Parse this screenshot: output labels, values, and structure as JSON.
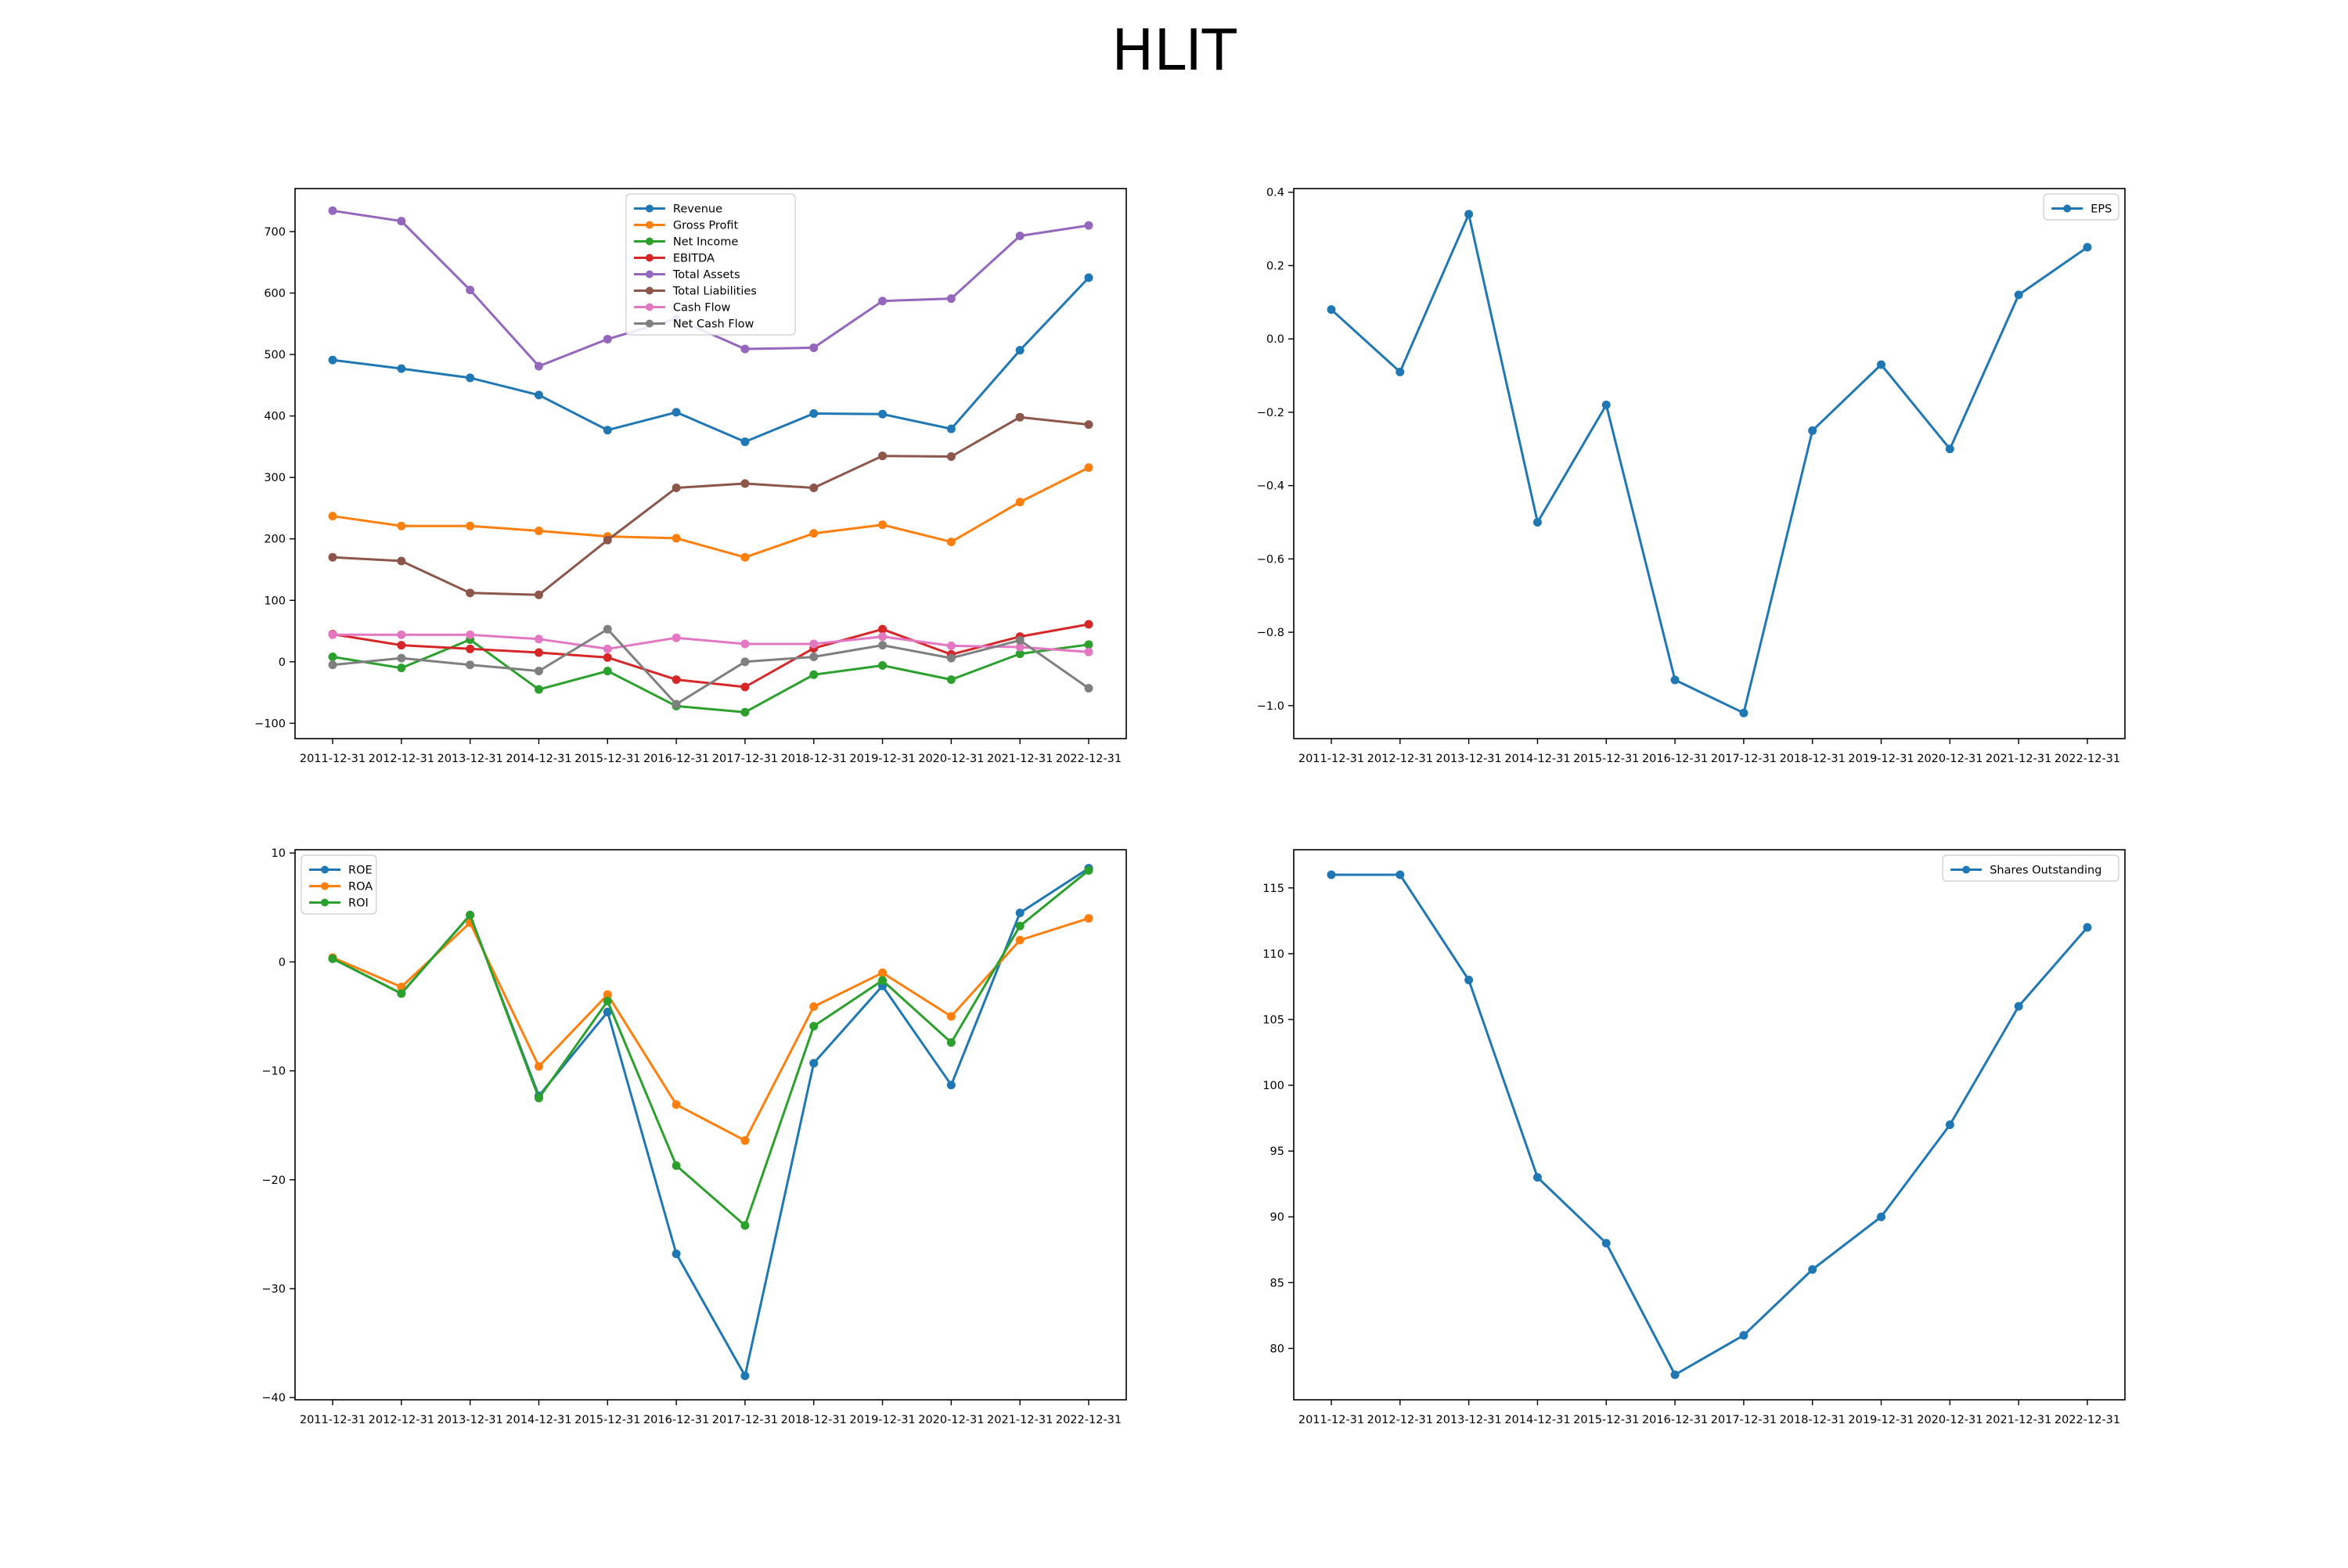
{
  "figure": {
    "title": "HLIT"
  },
  "colors": {
    "blue": "#1f77b4",
    "orange": "#ff7f0e",
    "green": "#2ca02c",
    "red": "#d62728",
    "purple": "#9467bd",
    "brown": "#8c564b",
    "pink": "#e377c2",
    "gray": "#7f7f7f"
  },
  "chart_data": [
    {
      "id": "financials",
      "type": "line",
      "title": "",
      "xlabel": "",
      "ylabel": "",
      "x": [
        "2011-12-31",
        "2012-12-31",
        "2013-12-31",
        "2014-12-31",
        "2015-12-31",
        "2016-12-31",
        "2017-12-31",
        "2018-12-31",
        "2019-12-31",
        "2020-12-31",
        "2021-12-31",
        "2022-12-31"
      ],
      "ylim": [
        -125,
        770
      ],
      "yticks": [
        -100,
        0,
        100,
        200,
        300,
        400,
        500,
        600,
        700
      ],
      "grid": false,
      "legend": "top-center",
      "series": [
        {
          "name": "Revenue",
          "color": "#1f77b4",
          "values": [
            491,
            477,
            462,
            434,
            377,
            406,
            358,
            404,
            403,
            379,
            507,
            625
          ]
        },
        {
          "name": "Gross Profit",
          "color": "#ff7f0e",
          "values": [
            237,
            221,
            221,
            213,
            204,
            201,
            170,
            209,
            223,
            195,
            260,
            316
          ]
        },
        {
          "name": "Net Income",
          "color": "#2ca02c",
          "values": [
            8,
            -10,
            36,
            -45,
            -15,
            -72,
            -82,
            -21,
            -6,
            -29,
            13,
            28
          ]
        },
        {
          "name": "EBITDA",
          "color": "#d62728",
          "values": [
            45,
            27,
            21,
            15,
            7,
            -29,
            -41,
            22,
            53,
            12,
            41,
            61
          ]
        },
        {
          "name": "Total Assets",
          "color": "#9467bd",
          "values": [
            734,
            717,
            605,
            481,
            525,
            558,
            509,
            511,
            587,
            591,
            693,
            710
          ]
        },
        {
          "name": "Total Liabilities",
          "color": "#8c564b",
          "values": [
            170,
            164,
            112,
            109,
            198,
            283,
            290,
            283,
            335,
            334,
            398,
            386
          ]
        },
        {
          "name": "Cash Flow",
          "color": "#e377c2",
          "values": [
            44,
            44,
            44,
            37,
            21,
            39,
            29,
            29,
            41,
            26,
            24,
            16
          ]
        },
        {
          "name": "Net Cash Flow",
          "color": "#7f7f7f",
          "values": [
            -5,
            6,
            -5,
            -15,
            53,
            -69,
            0,
            8,
            27,
            6,
            35,
            -43
          ]
        }
      ]
    },
    {
      "id": "eps",
      "type": "line",
      "title": "",
      "xlabel": "",
      "ylabel": "",
      "x": [
        "2011-12-31",
        "2012-12-31",
        "2013-12-31",
        "2014-12-31",
        "2015-12-31",
        "2016-12-31",
        "2017-12-31",
        "2018-12-31",
        "2019-12-31",
        "2020-12-31",
        "2021-12-31",
        "2022-12-31"
      ],
      "ylim": [
        -1.09,
        0.41
      ],
      "yticks": [
        -1.0,
        -0.8,
        -0.6,
        -0.4,
        -0.2,
        0.0,
        0.2,
        0.4
      ],
      "ytick_decimals": 1,
      "grid": false,
      "legend": "top-right",
      "series": [
        {
          "name": "EPS",
          "color": "#1f77b4",
          "values": [
            0.08,
            -0.09,
            0.34,
            -0.5,
            -0.18,
            -0.93,
            -1.02,
            -0.25,
            -0.07,
            -0.3,
            0.12,
            0.25
          ]
        }
      ]
    },
    {
      "id": "returns",
      "type": "line",
      "title": "",
      "xlabel": "",
      "ylabel": "",
      "x": [
        "2011-12-31",
        "2012-12-31",
        "2013-12-31",
        "2014-12-31",
        "2015-12-31",
        "2016-12-31",
        "2017-12-31",
        "2018-12-31",
        "2019-12-31",
        "2020-12-31",
        "2021-12-31",
        "2022-12-31"
      ],
      "ylim": [
        -40.2,
        10.3
      ],
      "yticks": [
        -40,
        -30,
        -20,
        -10,
        0,
        10
      ],
      "grid": false,
      "legend": "top-left",
      "series": [
        {
          "name": "ROE",
          "color": "#1f77b4",
          "values": [
            0.3,
            -2.9,
            4.3,
            -12.3,
            -4.6,
            -26.8,
            -38.0,
            -9.3,
            -2.2,
            -11.3,
            4.5,
            8.6
          ]
        },
        {
          "name": "ROA",
          "color": "#ff7f0e",
          "values": [
            0.4,
            -2.3,
            3.6,
            -9.6,
            -3.0,
            -13.1,
            -16.4,
            -4.1,
            -1.0,
            -5.0,
            2.0,
            4.0
          ]
        },
        {
          "name": "ROI",
          "color": "#2ca02c",
          "values": [
            0.3,
            -2.9,
            4.3,
            -12.5,
            -3.6,
            -18.7,
            -24.2,
            -5.9,
            -1.7,
            -7.4,
            3.3,
            8.4
          ]
        }
      ]
    },
    {
      "id": "shares",
      "type": "line",
      "title": "",
      "xlabel": "",
      "ylabel": "",
      "x": [
        "2011-12-31",
        "2012-12-31",
        "2013-12-31",
        "2014-12-31",
        "2015-12-31",
        "2016-12-31",
        "2017-12-31",
        "2018-12-31",
        "2019-12-31",
        "2020-12-31",
        "2021-12-31",
        "2022-12-31"
      ],
      "ylim": [
        76.1,
        117.9
      ],
      "yticks": [
        80,
        85,
        90,
        95,
        100,
        105,
        110,
        115
      ],
      "grid": false,
      "legend": "top-right",
      "series": [
        {
          "name": "Shares Outstanding",
          "color": "#1f77b4",
          "values": [
            116,
            116,
            108,
            93,
            88,
            78,
            81,
            86,
            90,
            97,
            106,
            112
          ]
        }
      ]
    }
  ]
}
